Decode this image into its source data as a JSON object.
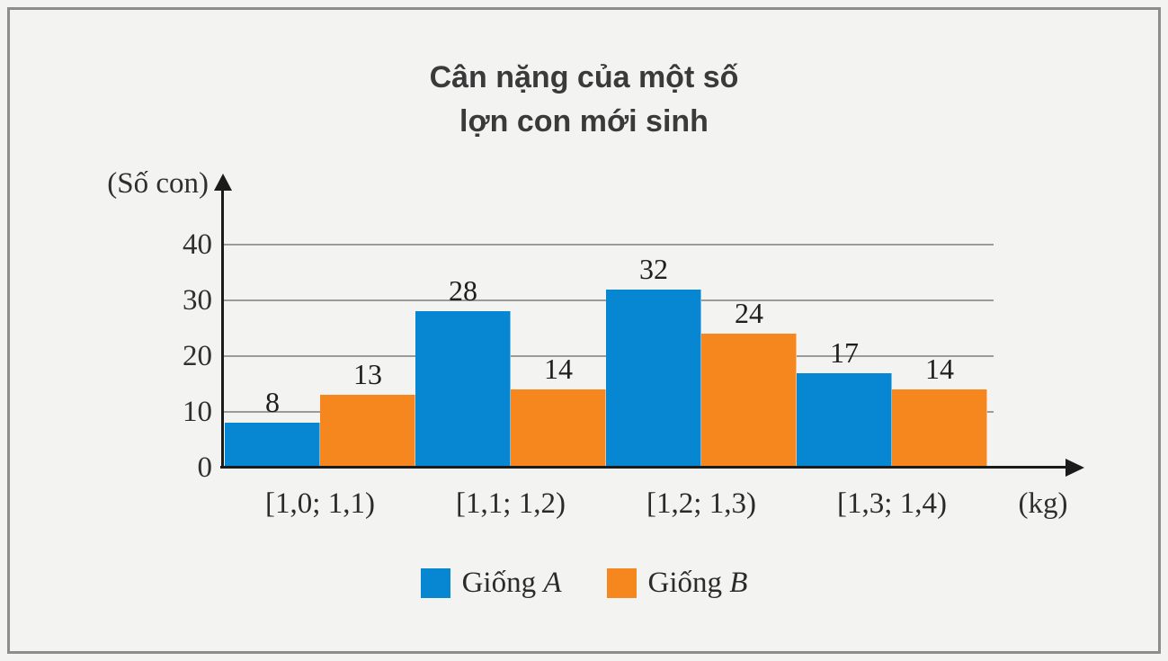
{
  "chart_data": {
    "type": "bar",
    "title": "Cân nặng của một số lợn con mới sinh",
    "title_lines": [
      "Cân nặng của một số",
      "lợn con mới sinh"
    ],
    "ylabel": "(Số con)",
    "xlabel": "(kg)",
    "categories": [
      "[1,0; 1,1)",
      "[1,1; 1,2)",
      "[1,2; 1,3)",
      "[1,3; 1,4)"
    ],
    "series": [
      {
        "name": "Giống A",
        "name_prefix": "Giống ",
        "name_letter": "A",
        "color": "#0787d1",
        "values": [
          8,
          28,
          32,
          17
        ]
      },
      {
        "name": "Giống B",
        "name_prefix": "Giống ",
        "name_letter": "B",
        "color": "#f6861e",
        "values": [
          13,
          14,
          24,
          14
        ]
      }
    ],
    "yticks": [
      0,
      10,
      20,
      30,
      40
    ],
    "ylim": [
      0,
      44
    ],
    "grid": true,
    "legend_position": "bottom",
    "bar_value_labels_shown": true
  },
  "colors": {
    "series_a": "#0787d1",
    "series_b": "#f6861e",
    "background": "#f3f3f1",
    "frame_border": "#8d8d8d",
    "gridline": "#9b9b97",
    "axis": "#1b1b1b",
    "text": "#2b2b2b"
  }
}
